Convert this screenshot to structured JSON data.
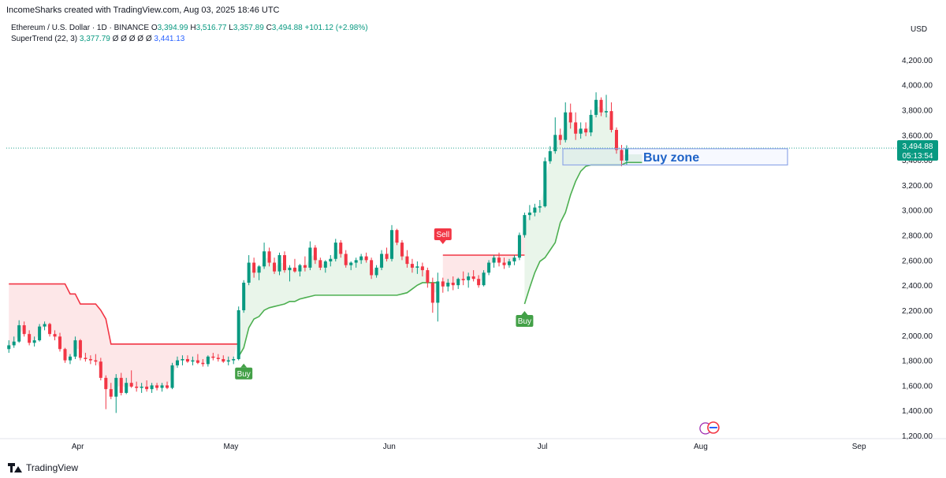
{
  "header": {
    "attribution": "IncomeSharks created with TradingView.com, Aug 03, 2025 18:46 UTC"
  },
  "legend": {
    "symbol": "Ethereum / U.S. Dollar · 1D · BINANCE",
    "o_label": "O",
    "o": "3,394.99",
    "h_label": "H",
    "h": "3,516.77",
    "l_label": "L",
    "l": "3,357.89",
    "c_label": "C",
    "c": "3,494.88",
    "change": "+101.12 (+2.98%)",
    "indicator": "SuperTrend (22, 3)",
    "indicator_value": "3,377.79",
    "indicator_blanks": "Ø Ø Ø Ø Ø",
    "indicator_value2": "3,441.13"
  },
  "footer": {
    "brand": "TradingView"
  },
  "colors": {
    "up": "#089981",
    "down": "#f23645",
    "supertrend_up": "#4caf50",
    "supertrend_down": "#f23645",
    "zone_border": "#2962ff",
    "zone_text": "#1e63c7"
  },
  "chart_data": {
    "type": "candlestick",
    "currency": "USD",
    "ylim": [
      1200,
      4300
    ],
    "y_ticks": [
      "1,200.00",
      "1,400.00",
      "1,600.00",
      "1,800.00",
      "2,000.00",
      "2,200.00",
      "2,400.00",
      "2,600.00",
      "2,800.00",
      "3,000.00",
      "3,200.00",
      "3,400.00",
      "3,600.00",
      "3,800.00",
      "4,000.00",
      "4,200.00"
    ],
    "x_ticks": [
      {
        "label": "Apr",
        "day": 14
      },
      {
        "label": "May",
        "day": 44
      },
      {
        "label": "Jun",
        "day": 75
      },
      {
        "label": "Jul",
        "day": 105
      },
      {
        "label": "Aug",
        "day": 136
      },
      {
        "label": "Sep",
        "day": 167
      }
    ],
    "x_range_days": [
      0,
      174
    ],
    "last_price": "3,494.88",
    "countdown": "05:13:54",
    "candles": [
      [
        1890,
        1960,
        1860,
        1920
      ],
      [
        1920,
        1990,
        1900,
        1950
      ],
      [
        1950,
        2120,
        1940,
        2080
      ],
      [
        2080,
        2110,
        1990,
        2010
      ],
      [
        2010,
        2040,
        1920,
        1940
      ],
      [
        1940,
        1990,
        1910,
        1960
      ],
      [
        1960,
        2090,
        1950,
        2070
      ],
      [
        2070,
        2110,
        2040,
        2090
      ],
      [
        2090,
        2100,
        1990,
        2010
      ],
      [
        2010,
        2040,
        1960,
        1990
      ],
      [
        1990,
        2020,
        1870,
        1890
      ],
      [
        1890,
        1900,
        1780,
        1800
      ],
      [
        1800,
        1850,
        1770,
        1830
      ],
      [
        1830,
        1990,
        1810,
        1960
      ],
      [
        1960,
        1970,
        1800,
        1820
      ],
      [
        1820,
        1860,
        1790,
        1810
      ],
      [
        1810,
        1840,
        1770,
        1800
      ],
      [
        1800,
        1850,
        1760,
        1790
      ],
      [
        1790,
        1820,
        1640,
        1660
      ],
      [
        1660,
        1680,
        1410,
        1570
      ],
      [
        1570,
        1620,
        1490,
        1510
      ],
      [
        1510,
        1690,
        1380,
        1660
      ],
      [
        1660,
        1700,
        1520,
        1540
      ],
      [
        1540,
        1660,
        1530,
        1620
      ],
      [
        1620,
        1720,
        1580,
        1590
      ],
      [
        1590,
        1630,
        1550,
        1580
      ],
      [
        1580,
        1620,
        1540,
        1590
      ],
      [
        1590,
        1640,
        1550,
        1570
      ],
      [
        1570,
        1620,
        1540,
        1600
      ],
      [
        1600,
        1620,
        1560,
        1580
      ],
      [
        1580,
        1620,
        1550,
        1600
      ],
      [
        1600,
        1630,
        1570,
        1580
      ],
      [
        1580,
        1780,
        1570,
        1760
      ],
      [
        1760,
        1830,
        1740,
        1800
      ],
      [
        1800,
        1840,
        1760,
        1810
      ],
      [
        1810,
        1840,
        1780,
        1790
      ],
      [
        1790,
        1830,
        1760,
        1800
      ],
      [
        1800,
        1850,
        1770,
        1780
      ],
      [
        1780,
        1810,
        1750,
        1770
      ],
      [
        1770,
        1840,
        1750,
        1830
      ],
      [
        1830,
        1860,
        1800,
        1820
      ],
      [
        1820,
        1850,
        1790,
        1810
      ],
      [
        1810,
        1840,
        1780,
        1790
      ],
      [
        1790,
        1830,
        1760,
        1800
      ],
      [
        1800,
        1830,
        1770,
        1810
      ],
      [
        1810,
        2230,
        1800,
        2200
      ],
      [
        2200,
        2440,
        2180,
        2420
      ],
      [
        2420,
        2640,
        2400,
        2580
      ],
      [
        2580,
        2620,
        2460,
        2500
      ],
      [
        2500,
        2560,
        2440,
        2550
      ],
      [
        2550,
        2740,
        2530,
        2670
      ],
      [
        2670,
        2700,
        2550,
        2580
      ],
      [
        2580,
        2620,
        2490,
        2510
      ],
      [
        2510,
        2660,
        2480,
        2640
      ],
      [
        2640,
        2670,
        2500,
        2520
      ],
      [
        2520,
        2560,
        2430,
        2540
      ],
      [
        2540,
        2610,
        2500,
        2510
      ],
      [
        2510,
        2570,
        2470,
        2560
      ],
      [
        2560,
        2630,
        2510,
        2540
      ],
      [
        2540,
        2750,
        2520,
        2700
      ],
      [
        2700,
        2720,
        2570,
        2600
      ],
      [
        2600,
        2620,
        2520,
        2540
      ],
      [
        2540,
        2600,
        2500,
        2590
      ],
      [
        2590,
        2640,
        2550,
        2610
      ],
      [
        2610,
        2770,
        2590,
        2740
      ],
      [
        2740,
        2760,
        2620,
        2650
      ],
      [
        2650,
        2680,
        2540,
        2560
      ],
      [
        2560,
        2590,
        2520,
        2580
      ],
      [
        2580,
        2620,
        2540,
        2600
      ],
      [
        2600,
        2650,
        2570,
        2630
      ],
      [
        2630,
        2660,
        2580,
        2600
      ],
      [
        2600,
        2620,
        2450,
        2480
      ],
      [
        2480,
        2560,
        2460,
        2540
      ],
      [
        2540,
        2680,
        2520,
        2650
      ],
      [
        2650,
        2700,
        2590,
        2610
      ],
      [
        2610,
        2880,
        2590,
        2840
      ],
      [
        2840,
        2850,
        2720,
        2740
      ],
      [
        2740,
        2760,
        2600,
        2630
      ],
      [
        2630,
        2680,
        2540,
        2570
      ],
      [
        2570,
        2610,
        2500,
        2540
      ],
      [
        2540,
        2590,
        2490,
        2550
      ],
      [
        2550,
        2580,
        2470,
        2520
      ],
      [
        2520,
        2540,
        2380,
        2420
      ],
      [
        2420,
        2460,
        2180,
        2260
      ],
      [
        2260,
        2500,
        2110,
        2430
      ],
      [
        2430,
        2460,
        2340,
        2390
      ],
      [
        2390,
        2450,
        2350,
        2420
      ],
      [
        2420,
        2470,
        2360,
        2400
      ],
      [
        2400,
        2460,
        2370,
        2450
      ],
      [
        2450,
        2510,
        2400,
        2440
      ],
      [
        2440,
        2500,
        2380,
        2470
      ],
      [
        2470,
        2520,
        2430,
        2450
      ],
      [
        2450,
        2480,
        2380,
        2400
      ],
      [
        2400,
        2520,
        2390,
        2500
      ],
      [
        2500,
        2600,
        2480,
        2580
      ],
      [
        2580,
        2640,
        2540,
        2620
      ],
      [
        2620,
        2660,
        2550,
        2580
      ],
      [
        2580,
        2620,
        2530,
        2560
      ],
      [
        2560,
        2610,
        2540,
        2590
      ],
      [
        2590,
        2640,
        2560,
        2620
      ],
      [
        2620,
        2820,
        2600,
        2800
      ],
      [
        2800,
        2980,
        2780,
        2960
      ],
      [
        2960,
        3040,
        2920,
        2980
      ],
      [
        2980,
        3050,
        2950,
        3020
      ],
      [
        3020,
        3080,
        2980,
        3030
      ],
      [
        3030,
        3420,
        3020,
        3390
      ],
      [
        3390,
        3510,
        3370,
        3470
      ],
      [
        3470,
        3740,
        3450,
        3600
      ],
      [
        3600,
        3650,
        3520,
        3560
      ],
      [
        3560,
        3860,
        3540,
        3780
      ],
      [
        3780,
        3850,
        3650,
        3700
      ],
      [
        3700,
        3780,
        3560,
        3610
      ],
      [
        3610,
        3700,
        3570,
        3650
      ],
      [
        3650,
        3700,
        3590,
        3620
      ],
      [
        3620,
        3800,
        3590,
        3760
      ],
      [
        3760,
        3940,
        3740,
        3880
      ],
      [
        3880,
        3900,
        3750,
        3780
      ],
      [
        3780,
        3920,
        3740,
        3790
      ],
      [
        3790,
        3860,
        3620,
        3640
      ],
      [
        3640,
        3660,
        3450,
        3480
      ],
      [
        3480,
        3520,
        3350,
        3395
      ],
      [
        3395,
        3517,
        3358,
        3495
      ]
    ],
    "supertrend_bear": {
      "start": 0,
      "end": 45,
      "values": [
        2410,
        2410,
        2410,
        2410,
        2410,
        2410,
        2410,
        2410,
        2410,
        2410,
        2410,
        2410,
        2330,
        2330,
        2250,
        2250,
        2250,
        2250,
        2200,
        2130,
        1930,
        1930,
        1930,
        1930,
        1930,
        1930,
        1930,
        1930,
        1930,
        1930,
        1930,
        1930,
        1930,
        1930,
        1930,
        1930,
        1930,
        1930,
        1930,
        1930,
        1930,
        1930,
        1930,
        1930,
        1930,
        1930
      ]
    },
    "supertrend_bull1": {
      "start": 45,
      "end": 84,
      "values": [
        1830,
        1900,
        2060,
        2130,
        2150,
        2200,
        2220,
        2230,
        2240,
        2250,
        2270,
        2270,
        2290,
        2300,
        2310,
        2320,
        2320,
        2320,
        2320,
        2320,
        2320,
        2320,
        2320,
        2320,
        2320,
        2320,
        2320,
        2320,
        2320,
        2320,
        2320,
        2320,
        2330,
        2340,
        2370,
        2400,
        2420,
        2420,
        2420,
        2420
      ]
    },
    "supertrend_bear2": {
      "start": 85,
      "end": 101,
      "values": [
        2640,
        2640,
        2640,
        2640,
        2640,
        2640,
        2640,
        2640,
        2640,
        2640,
        2640,
        2640,
        2640,
        2640,
        2640,
        2640,
        2640
      ]
    },
    "supertrend_bull2": {
      "start": 101,
      "end": 124,
      "values": [
        2250,
        2380,
        2500,
        2590,
        2620,
        2680,
        2740,
        2900,
        2980,
        3120,
        3230,
        3310,
        3350,
        3360,
        3360,
        3360,
        3360,
        3360,
        3360,
        3360,
        3380,
        3380,
        3380,
        3380
      ]
    },
    "signals": [
      {
        "label": "Buy",
        "day": 46,
        "type": "buy"
      },
      {
        "label": "Sell",
        "day": 85,
        "type": "sell"
      },
      {
        "label": "Buy",
        "day": 101,
        "type": "buy"
      }
    ],
    "zone": {
      "label": "Buy zone",
      "day_start": 109,
      "day_end": 153,
      "y_top": 3490,
      "y_bottom": 3360
    }
  }
}
